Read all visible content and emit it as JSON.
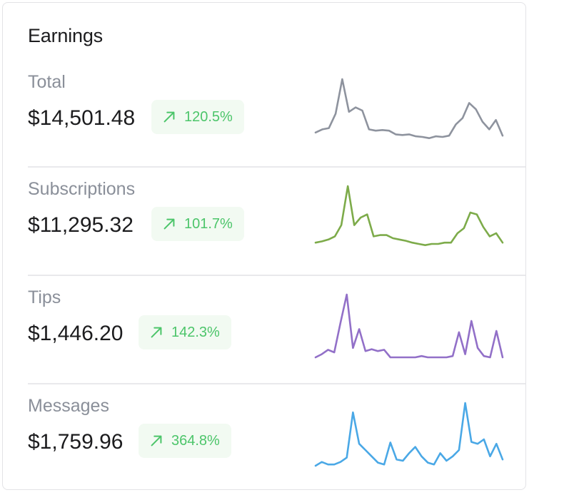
{
  "card": {
    "title": "Earnings"
  },
  "rows": [
    {
      "label": "Total",
      "amount": "$14,501.48",
      "change": "120.5%",
      "color": "#8e939e",
      "badge_offset": 208,
      "trend": [
        0.15,
        0.2,
        0.22,
        0.45,
        1.0,
        0.48,
        0.55,
        0.5,
        0.2,
        0.18,
        0.19,
        0.18,
        0.12,
        0.11,
        0.12,
        0.09,
        0.08,
        0.06,
        0.09,
        0.08,
        0.1,
        0.28,
        0.38,
        0.62,
        0.52,
        0.32,
        0.2,
        0.35,
        0.1
      ]
    },
    {
      "label": "Subscriptions",
      "amount": "$11,295.32",
      "change": "101.7%",
      "color": "#7dab4a",
      "badge_offset": 208,
      "trend": [
        0.1,
        0.12,
        0.15,
        0.2,
        0.38,
        1.0,
        0.38,
        0.5,
        0.55,
        0.2,
        0.22,
        0.22,
        0.17,
        0.15,
        0.13,
        0.1,
        0.08,
        0.06,
        0.08,
        0.08,
        0.1,
        0.1,
        0.25,
        0.33,
        0.58,
        0.55,
        0.35,
        0.2,
        0.25,
        0.1
      ]
    },
    {
      "label": "Tips",
      "amount": "$1,446.20",
      "change": "142.3%",
      "color": "#9270c8",
      "badge_offset": 190,
      "trend": [
        0.0,
        0.05,
        0.12,
        0.08,
        0.55,
        1.0,
        0.15,
        0.45,
        0.1,
        0.13,
        0.1,
        0.12,
        0.0,
        0.0,
        0.0,
        0.0,
        0.0,
        0.02,
        0.0,
        0.0,
        0.0,
        0.0,
        0.02,
        0.4,
        0.05,
        0.58,
        0.15,
        0.02,
        0.0,
        0.42,
        0.0
      ]
    },
    {
      "label": "Messages",
      "amount": "$1,759.96",
      "change": "364.8%",
      "color": "#4aa8e6",
      "badge_offset": 190,
      "trend": [
        0.0,
        0.06,
        0.02,
        0.02,
        0.06,
        0.13,
        0.85,
        0.35,
        0.25,
        0.15,
        0.05,
        0.02,
        0.37,
        0.1,
        0.08,
        0.2,
        0.3,
        0.15,
        0.05,
        0.02,
        0.2,
        0.08,
        0.15,
        0.25,
        1.0,
        0.38,
        0.35,
        0.42,
        0.15,
        0.35,
        0.1
      ]
    }
  ]
}
